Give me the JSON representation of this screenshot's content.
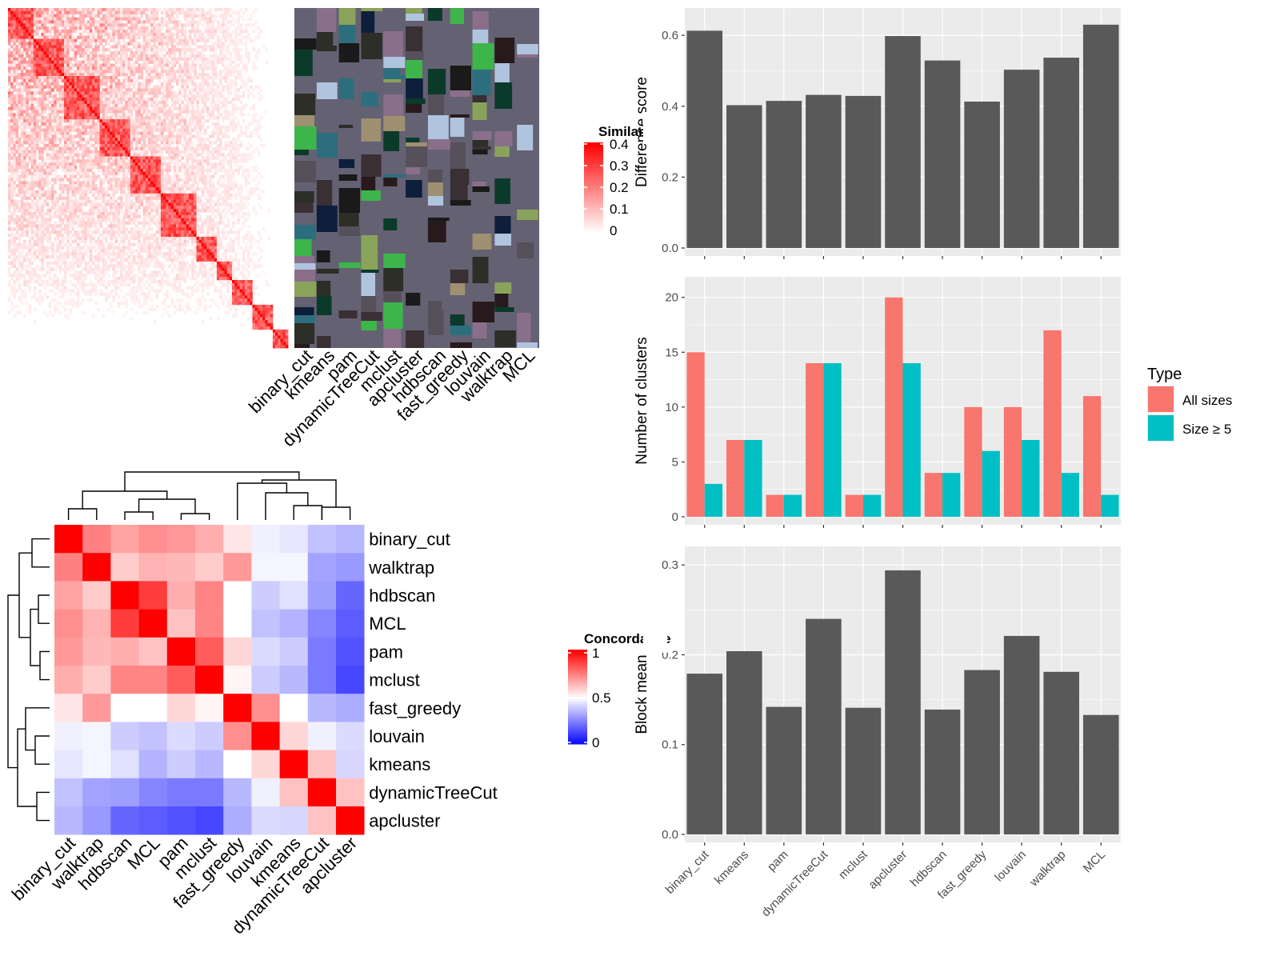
{
  "colors": {
    "panel_bg": "#EBEBEB",
    "grid": "#FFFFFF",
    "bar": "#595959",
    "all_sizes": "#F8766D",
    "size_ge5": "#00BFC4",
    "heat_red": "#FF0000",
    "heat_white": "#FFFFFF",
    "heat_blue": "#0000FF",
    "cluster_panel_bg": "#646173"
  },
  "similarity_heatmap": {
    "legend_title": "Similarity",
    "legend_ticks": [
      "0",
      "0.1",
      "0.2",
      "0.3",
      "0.4"
    ]
  },
  "cluster_assignment": {
    "methods": [
      "binary_cut",
      "kmeans",
      "pam",
      "dynamicTreeCut",
      "mclust",
      "apcluster",
      "hdbscan",
      "fast_greedy",
      "louvain",
      "walktrap",
      "MCL"
    ]
  },
  "concordance_heatmap": {
    "legend_title": "Concordance",
    "legend_ticks": [
      "0",
      "0.5",
      "1"
    ],
    "order": [
      "binary_cut",
      "walktrap",
      "hdbscan",
      "MCL",
      "pam",
      "mclust",
      "fast_greedy",
      "louvain",
      "kmeans",
      "dynamicTreeCut",
      "apcluster"
    ],
    "matrix": [
      [
        1.0,
        0.75,
        0.68,
        0.72,
        0.7,
        0.66,
        0.55,
        0.47,
        0.45,
        0.38,
        0.36
      ],
      [
        0.75,
        1.0,
        0.6,
        0.65,
        0.64,
        0.6,
        0.7,
        0.48,
        0.48,
        0.32,
        0.3
      ],
      [
        0.68,
        0.6,
        1.0,
        0.88,
        0.66,
        0.74,
        0.5,
        0.4,
        0.44,
        0.31,
        0.2
      ],
      [
        0.72,
        0.65,
        0.88,
        1.0,
        0.62,
        0.74,
        0.5,
        0.38,
        0.35,
        0.26,
        0.18
      ],
      [
        0.7,
        0.64,
        0.66,
        0.62,
        1.0,
        0.82,
        0.58,
        0.43,
        0.4,
        0.24,
        0.16
      ],
      [
        0.66,
        0.6,
        0.74,
        0.74,
        0.82,
        1.0,
        0.52,
        0.4,
        0.36,
        0.24,
        0.14
      ],
      [
        0.55,
        0.7,
        0.5,
        0.5,
        0.58,
        0.52,
        1.0,
        0.72,
        0.5,
        0.36,
        0.34
      ],
      [
        0.47,
        0.48,
        0.4,
        0.38,
        0.43,
        0.4,
        0.72,
        1.0,
        0.58,
        0.47,
        0.43
      ],
      [
        0.45,
        0.48,
        0.44,
        0.35,
        0.4,
        0.36,
        0.5,
        0.58,
        1.0,
        0.62,
        0.42
      ],
      [
        0.38,
        0.32,
        0.31,
        0.26,
        0.24,
        0.24,
        0.36,
        0.47,
        0.62,
        1.0,
        0.62
      ],
      [
        0.36,
        0.3,
        0.2,
        0.18,
        0.16,
        0.14,
        0.34,
        0.43,
        0.42,
        0.62,
        1.0
      ]
    ]
  },
  "chart_data": [
    {
      "type": "bar",
      "categories": [
        "binary_cut",
        "kmeans",
        "pam",
        "dynamicTreeCut",
        "mclust",
        "apcluster",
        "hdbscan",
        "fast_greedy",
        "louvain",
        "walktrap",
        "MCL"
      ],
      "values": [
        0.613,
        0.403,
        0.415,
        0.432,
        0.429,
        0.598,
        0.529,
        0.413,
        0.503,
        0.537,
        0.63
      ],
      "ylabel": "Difference score",
      "ylim": [
        0,
        0.65
      ],
      "yticks": [
        "0.0",
        "0.2",
        "0.4",
        "0.6"
      ],
      "grid": true
    },
    {
      "type": "bar",
      "categories": [
        "binary_cut",
        "kmeans",
        "pam",
        "dynamicTreeCut",
        "mclust",
        "apcluster",
        "hdbscan",
        "fast_greedy",
        "louvain",
        "walktrap",
        "MCL"
      ],
      "series": [
        {
          "name": "All sizes",
          "values": [
            15,
            7,
            2,
            14,
            2,
            20,
            4,
            10,
            10,
            17,
            11
          ]
        },
        {
          "name": "Size ≥ 5",
          "values": [
            3,
            7,
            2,
            14,
            2,
            14,
            4,
            6,
            7,
            4,
            2
          ]
        }
      ],
      "ylabel": "Number of clusters",
      "ylim": [
        0,
        21
      ],
      "yticks": [
        "0",
        "5",
        "10",
        "15",
        "20"
      ],
      "legend_title": "Type",
      "legend_position": "right",
      "grid": true
    },
    {
      "type": "bar",
      "categories": [
        "binary_cut",
        "kmeans",
        "pam",
        "dynamicTreeCut",
        "mclust",
        "apcluster",
        "hdbscan",
        "fast_greedy",
        "louvain",
        "walktrap",
        "MCL"
      ],
      "values": [
        0.179,
        0.204,
        0.142,
        0.24,
        0.141,
        0.294,
        0.139,
        0.183,
        0.221,
        0.181,
        0.133
      ],
      "ylabel": "Block mean",
      "ylim": [
        0,
        0.31
      ],
      "yticks": [
        "0.0",
        "0.1",
        "0.2",
        "0.3"
      ],
      "grid": true
    }
  ]
}
